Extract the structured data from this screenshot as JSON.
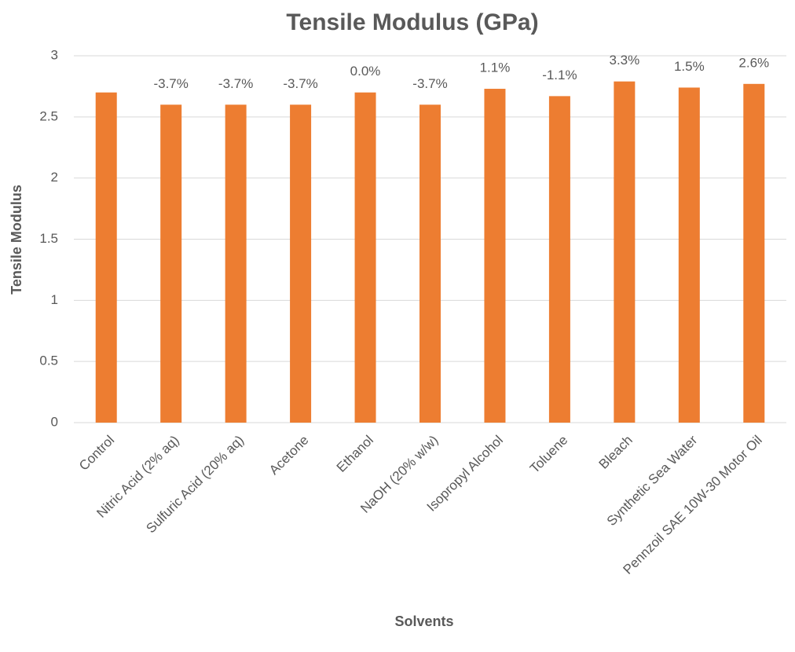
{
  "chart_data": {
    "type": "bar",
    "title": "Tensile Modulus (GPa)",
    "x_label": "Solvents",
    "y_label": "Tensile Modulus",
    "categories": [
      "Control",
      "Nitric Acid (2% aq)",
      "Sulfuric Acid (20% aq)",
      "Acetone",
      "Ethanol",
      "NaOH (20% w/w)",
      "Isopropyl Alcohol",
      "Toluene",
      "Bleach",
      "Synthetic Sea Water",
      "Pennzoil SAE 10W-30 Motor Oil"
    ],
    "values": [
      2.7,
      2.6,
      2.6,
      2.6,
      2.7,
      2.6,
      2.73,
      2.67,
      2.79,
      2.74,
      2.77
    ],
    "data_labels": [
      null,
      "-3.7%",
      "-3.7%",
      "-3.7%",
      "0.0%",
      "-3.7%",
      "1.1%",
      "-1.1%",
      "3.3%",
      "1.5%",
      "2.6%"
    ],
    "color": "#ed7d31",
    "ylim": [
      0,
      3
    ],
    "yticks": [
      0,
      0.5,
      1,
      1.5,
      2,
      2.5,
      3
    ],
    "grid": true
  }
}
